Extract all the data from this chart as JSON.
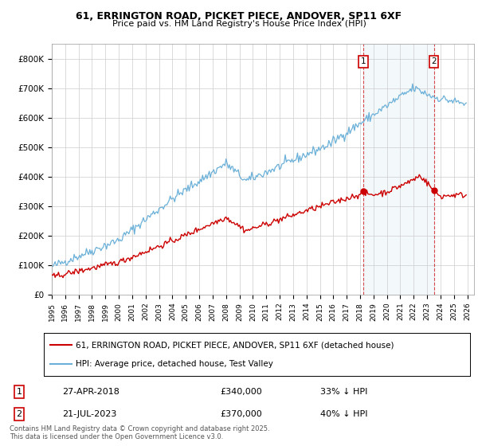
{
  "title_line1": "61, ERRINGTON ROAD, PICKET PIECE, ANDOVER, SP11 6XF",
  "title_line2": "Price paid vs. HM Land Registry's House Price Index (HPI)",
  "ylim": [
    0,
    850000
  ],
  "yticks": [
    0,
    100000,
    200000,
    300000,
    400000,
    500000,
    600000,
    700000,
    800000
  ],
  "ytick_labels": [
    "£0",
    "£100K",
    "£200K",
    "£300K",
    "£400K",
    "£500K",
    "£600K",
    "£700K",
    "£800K"
  ],
  "hpi_color": "#6ab0d8",
  "price_color": "#cc0000",
  "legend_price_label": "61, ERRINGTON ROAD, PICKET PIECE, ANDOVER, SP11 6XF (detached house)",
  "legend_hpi_label": "HPI: Average price, detached house, Test Valley",
  "annotation1_date": "27-APR-2018",
  "annotation1_price": "£340,000",
  "annotation1_hpi": "33% ↓ HPI",
  "annotation2_date": "21-JUL-2023",
  "annotation2_price": "£370,000",
  "annotation2_hpi": "40% ↓ HPI",
  "footnote": "Contains HM Land Registry data © Crown copyright and database right 2025.\nThis data is licensed under the Open Government Licence v3.0.",
  "bg_color": "#ffffff",
  "grid_color": "#cccccc",
  "marker1_label": "1",
  "marker2_label": "2"
}
